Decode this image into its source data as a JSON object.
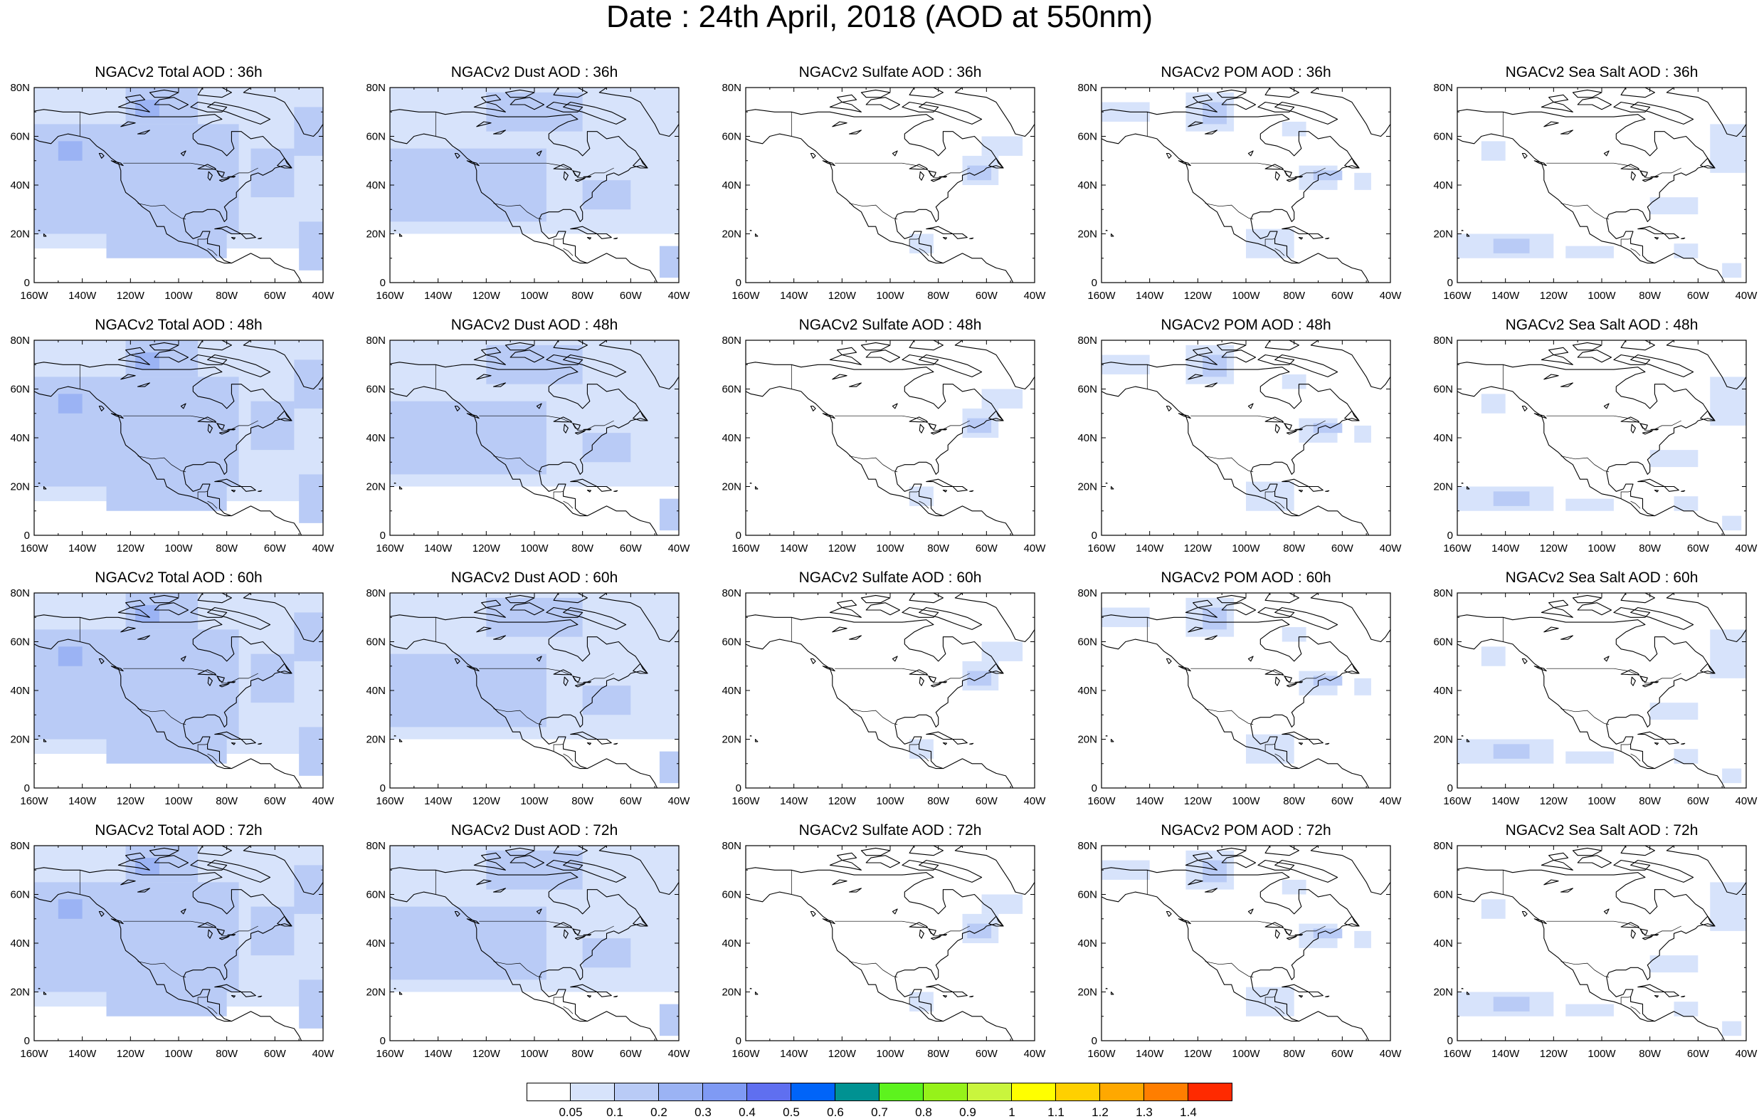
{
  "title": "Date : 24th April, 2018 (AOD at 550nm)",
  "map_extent": {
    "lon": [
      -160,
      -40
    ],
    "lat": [
      0,
      80
    ]
  },
  "axis_ticks": {
    "lon": [
      "160W",
      "140W",
      "120W",
      "100W",
      "80W",
      "60W",
      "40W"
    ],
    "lat": [
      "0",
      "20N",
      "40N",
      "60N",
      "80N"
    ]
  },
  "colorbar": {
    "colors": [
      "#ffffff",
      "#d7e3fb",
      "#b9cbf6",
      "#9bb3f4",
      "#7f9af4",
      "#5f6ff0",
      "#0064f9",
      "#009292",
      "#5df31e",
      "#96f21a",
      "#c9f53d",
      "#ffff00",
      "#ffd000",
      "#ffa800",
      "#ff7e00",
      "#ff2a00"
    ],
    "labels": [
      "0.05",
      "0.1",
      "0.2",
      "0.3",
      "0.4",
      "0.5",
      "0.6",
      "0.7",
      "0.8",
      "0.9",
      "1",
      "1.1",
      "1.2",
      "1.3",
      "1.4"
    ]
  },
  "panels": [
    {
      "title": "NGACv2 Total AOD : 36h",
      "species": "total",
      "hour": 36
    },
    {
      "title": "NGACv2 Dust AOD : 36h",
      "species": "dust",
      "hour": 36
    },
    {
      "title": "NGACv2 Sulfate AOD : 36h",
      "species": "sulfate",
      "hour": 36
    },
    {
      "title": "NGACv2 POM AOD : 36h",
      "species": "pom",
      "hour": 36
    },
    {
      "title": "NGACv2 Sea Salt AOD : 36h",
      "species": "seasalt",
      "hour": 36
    },
    {
      "title": "NGACv2 Total AOD : 48h",
      "species": "total",
      "hour": 48
    },
    {
      "title": "NGACv2 Dust AOD : 48h",
      "species": "dust",
      "hour": 48
    },
    {
      "title": "NGACv2 Sulfate AOD : 48h",
      "species": "sulfate",
      "hour": 48
    },
    {
      "title": "NGACv2 POM AOD : 48h",
      "species": "pom",
      "hour": 48
    },
    {
      "title": "NGACv2 Sea Salt AOD : 48h",
      "species": "seasalt",
      "hour": 48
    },
    {
      "title": "NGACv2 Total AOD : 60h",
      "species": "total",
      "hour": 60
    },
    {
      "title": "NGACv2 Dust AOD : 60h",
      "species": "dust",
      "hour": 60
    },
    {
      "title": "NGACv2 Sulfate AOD : 60h",
      "species": "sulfate",
      "hour": 60
    },
    {
      "title": "NGACv2 POM AOD : 60h",
      "species": "pom",
      "hour": 60
    },
    {
      "title": "NGACv2 Sea Salt AOD : 60h",
      "species": "seasalt",
      "hour": 60
    },
    {
      "title": "NGACv2 Total AOD : 72h",
      "species": "total",
      "hour": 72
    },
    {
      "title": "NGACv2 Dust AOD : 72h",
      "species": "dust",
      "hour": 72
    },
    {
      "title": "NGACv2 Sulfate AOD : 72h",
      "species": "sulfate",
      "hour": 72
    },
    {
      "title": "NGACv2 POM AOD : 72h",
      "species": "pom",
      "hour": 72
    },
    {
      "title": "NGACv2 Sea Salt  AOD : 72h",
      "species": "seasalt",
      "hour": 72
    }
  ]
}
